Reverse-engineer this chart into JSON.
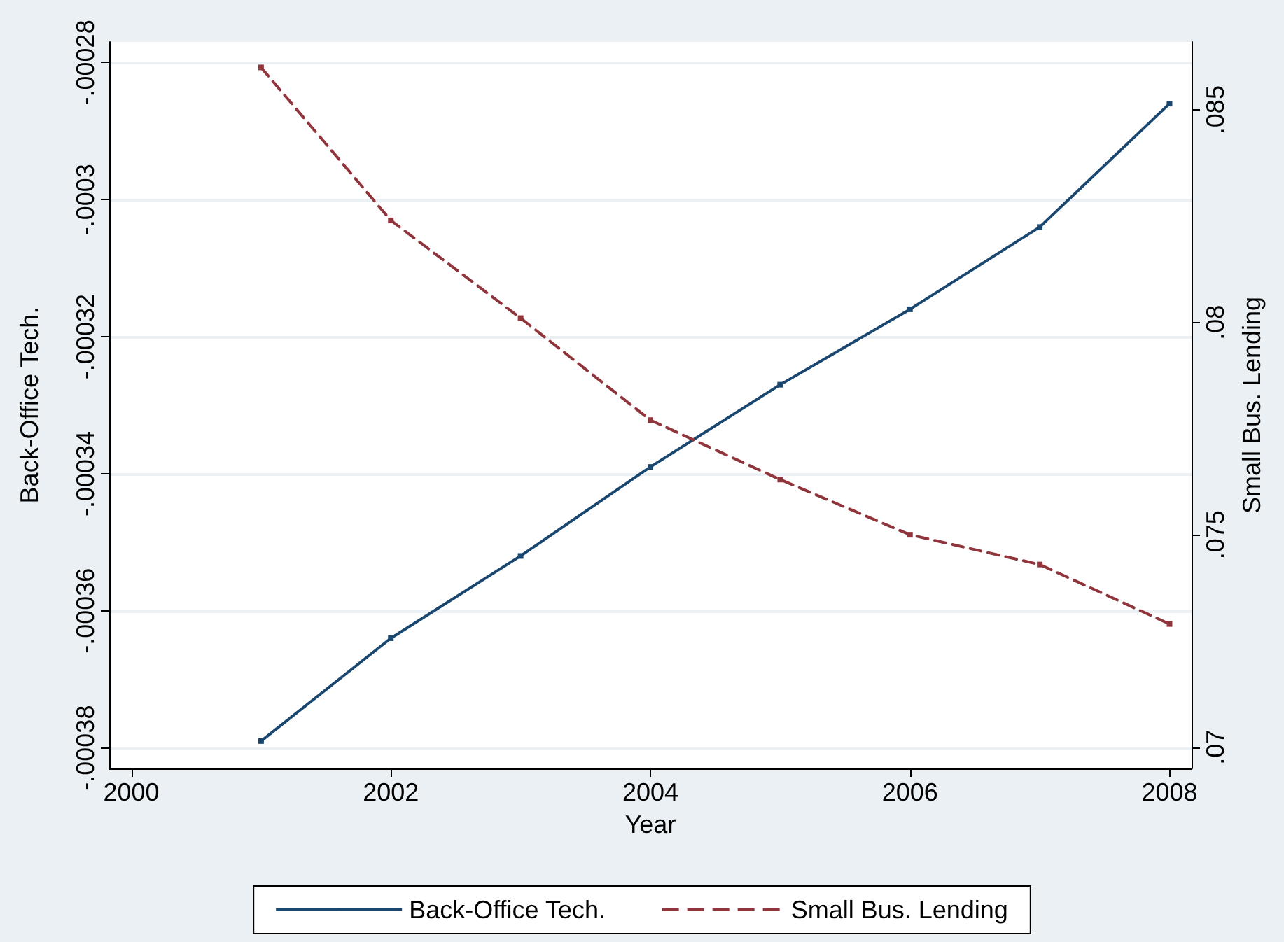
{
  "chart_data": {
    "type": "line",
    "xlabel": "Year",
    "ylabel": "Back-Office Tech.",
    "y2label": "Small Bus. Lending",
    "x": [
      2001,
      2002,
      2003,
      2004,
      2005,
      2006,
      2007,
      2008
    ],
    "series": [
      {
        "name": "Back-Office Tech.",
        "color": "#1a476f",
        "line_style": "solid",
        "values": [
          -0.000379,
          -0.000364,
          -0.000352,
          -0.000339,
          -0.000327,
          -0.000316,
          -0.000304,
          -0.000286
        ]
      },
      {
        "name": "Small Bus. Lending",
        "color": "#90353b",
        "line_style": "dashed",
        "axis": "y2",
        "values": [
          0.086,
          0.0824,
          0.0801,
          0.0777,
          0.0763,
          0.075,
          0.0743,
          0.0729
        ]
      }
    ],
    "xlim": [
      1999.83,
      2008.17
    ],
    "xticks": [
      2000,
      2002,
      2004,
      2006,
      2008
    ],
    "ylim": [
      -0.000383,
      -0.000277
    ],
    "yticks": [
      {
        "value": -0.00038,
        "label": "-.00038"
      },
      {
        "value": -0.00036,
        "label": "-.00036"
      },
      {
        "value": -0.00034,
        "label": "-.00034"
      },
      {
        "value": -0.00032,
        "label": "-.00032"
      },
      {
        "value": -0.0003,
        "label": "-.0003"
      },
      {
        "value": -0.00028,
        "label": "-.00028"
      }
    ],
    "y2lim": [
      0.0695,
      0.0866
    ],
    "y2ticks": [
      {
        "value": 0.07,
        "label": ".07"
      },
      {
        "value": 0.075,
        "label": ".075"
      },
      {
        "value": 0.08,
        "label": ".08"
      },
      {
        "value": 0.085,
        "label": ".085"
      }
    ],
    "grid": "y",
    "legend": "bottom",
    "marker": "square"
  }
}
